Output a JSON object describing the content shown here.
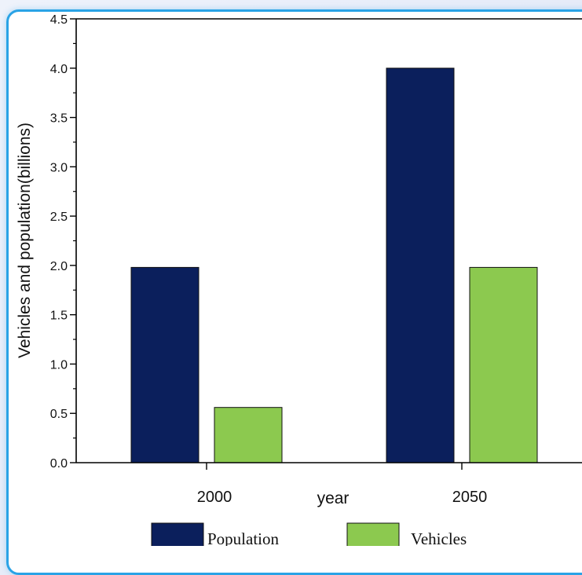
{
  "chart_data": {
    "type": "bar",
    "title": "",
    "xlabel": "year",
    "ylabel": "Vehicles and population(billions)",
    "categories": [
      "2000",
      "2050"
    ],
    "series": [
      {
        "name": "Population",
        "values": [
          1.98,
          4.0
        ],
        "color": "#0b1f5c"
      },
      {
        "name": "Vehicles",
        "values": [
          0.56,
          1.98
        ],
        "color": "#8cc94f"
      }
    ],
    "ylim": [
      0,
      4.5
    ],
    "yticks": [
      "0.0",
      "0.5",
      "1.0",
      "1.5",
      "2.0",
      "2.5",
      "3.0",
      "3.5",
      "4.0",
      "4.5"
    ],
    "grid": false,
    "legend_position": "bottom"
  },
  "colors": {
    "frame_border": "#2aa3e6",
    "card_background": "#ffffff"
  }
}
